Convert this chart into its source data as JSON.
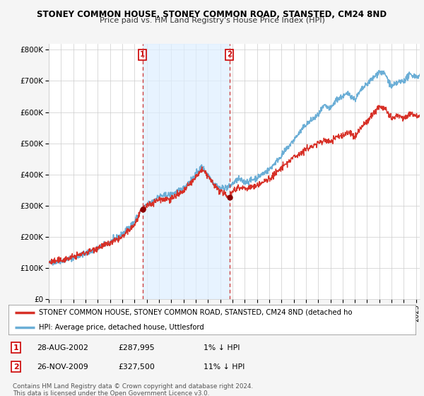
{
  "title": "STONEY COMMON HOUSE, STONEY COMMON ROAD, STANSTED, CM24 8ND",
  "subtitle": "Price paid vs. HM Land Registry's House Price Index (HPI)",
  "hpi_color": "#6baed6",
  "price_color": "#d73027",
  "marker_color": "#8b0000",
  "shade_color": "#ddeeff",
  "ylim": [
    0,
    820000
  ],
  "yticks": [
    0,
    100000,
    200000,
    300000,
    400000,
    500000,
    600000,
    700000,
    800000
  ],
  "ytick_labels": [
    "£0",
    "£100K",
    "£200K",
    "£300K",
    "£400K",
    "£500K",
    "£600K",
    "£700K",
    "£800K"
  ],
  "legend_line1": "STONEY COMMON HOUSE, STONEY COMMON ROAD, STANSTED, CM24 8ND (detached ho",
  "legend_line2": "HPI: Average price, detached house, Uttlesford",
  "annotation1_date": "28-AUG-2002",
  "annotation1_price": "£287,995",
  "annotation1_hpi": "1% ↓ HPI",
  "annotation2_date": "26-NOV-2009",
  "annotation2_price": "£327,500",
  "annotation2_hpi": "11% ↓ HPI",
  "copyright_text": "Contains HM Land Registry data © Crown copyright and database right 2024.\nThis data is licensed under the Open Government Licence v3.0.",
  "fig_bg_color": "#f5f5f5",
  "plot_bg_color": "#ffffff",
  "vline1_x": 2002.65,
  "vline2_x": 2009.75,
  "marker1_y": 287995,
  "marker2_y": 327500,
  "xlim_left": 1995.0,
  "xlim_right": 2025.3
}
